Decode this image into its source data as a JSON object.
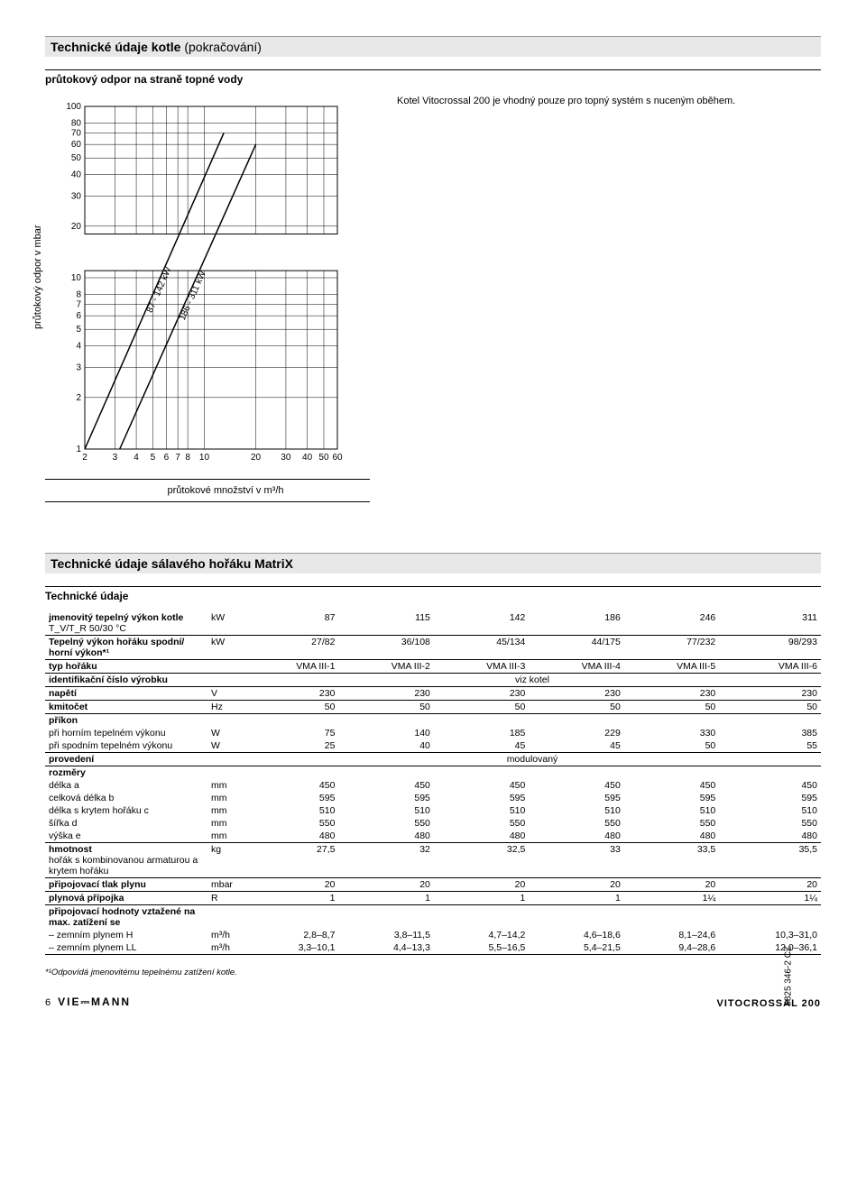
{
  "header1": {
    "bold": "Technické údaje kotle",
    "rest": " (pokračování)"
  },
  "subheading1": "průtokový odpor na straně topné vody",
  "note_text": "Kotel Vitocrossal 200 je vhodný pouze pro topný systém s nuceným oběhem.",
  "chart": {
    "type": "log-log-line",
    "y_label": "průtokový odpor v mbar",
    "x_label": "průtokové množství v m³/h",
    "x_ticks": [
      2,
      3,
      4,
      5,
      6,
      7,
      8,
      10,
      20,
      30,
      40,
      50,
      60
    ],
    "y_ticks": [
      1,
      2,
      3,
      4,
      5,
      6,
      7,
      8,
      10,
      20,
      30,
      40,
      50,
      60,
      70,
      80,
      100
    ],
    "background_color": "#ffffff",
    "grid_color": "#000000",
    "line_color": "#000000",
    "line_width": 1.5,
    "font_size": 10,
    "series": [
      {
        "label": "87 - 142 kW",
        "x": [
          2,
          13
        ],
        "y": [
          1,
          70
        ]
      },
      {
        "label": "186 - 311 kW",
        "x": [
          3.2,
          20
        ],
        "y": [
          1,
          60
        ]
      }
    ]
  },
  "header2": "Technické údaje sálavého hořáku MatriX",
  "subheading2": "Technické údaje",
  "table": {
    "columns_count": 8,
    "rows": [
      {
        "label": "jmenovitý tepelný výkon kotle",
        "sub": "T_V/T_R 50/30 °C",
        "unit": "kW",
        "vals": [
          "87",
          "115",
          "142",
          "186",
          "246",
          "311"
        ],
        "bold": true,
        "border": true
      },
      {
        "label": "Tepelný výkon hořáku spodní/ horní výkon*¹",
        "unit": "kW",
        "vals": [
          "27/82",
          "36/108",
          "45/134",
          "44/175",
          "77/232",
          "98/293"
        ],
        "bold": true,
        "border": true
      },
      {
        "label": "typ hořáku",
        "unit": "",
        "vals": [
          "VMA III-1",
          "VMA III-2",
          "VMA III-3",
          "VMA III-4",
          "VMA III-5",
          "VMA III-6"
        ],
        "bold": true,
        "border": true
      },
      {
        "label": "identifikační číslo výrobku",
        "unit": "",
        "span": "viz kotel",
        "bold": true,
        "border": true
      },
      {
        "label": "napětí",
        "unit": "V",
        "vals": [
          "230",
          "230",
          "230",
          "230",
          "230",
          "230"
        ],
        "bold": true,
        "border": true
      },
      {
        "label": "kmitočet",
        "unit": "Hz",
        "vals": [
          "50",
          "50",
          "50",
          "50",
          "50",
          "50"
        ],
        "bold": true,
        "border": true
      },
      {
        "label": "příkon",
        "unit": "",
        "vals": [
          "",
          "",
          "",
          "",
          "",
          ""
        ],
        "bold": true
      },
      {
        "label": "při horním tepelném výkonu",
        "unit": "W",
        "vals": [
          "75",
          "140",
          "185",
          "229",
          "330",
          "385"
        ]
      },
      {
        "label": "při spodním tepelném výkonu",
        "unit": "W",
        "vals": [
          "25",
          "40",
          "45",
          "45",
          "50",
          "55"
        ],
        "border": true
      },
      {
        "label": "provedení",
        "unit": "",
        "span": "modulovaný",
        "bold": true,
        "border": true
      },
      {
        "label": "rozměry",
        "unit": "",
        "vals": [
          "",
          "",
          "",
          "",
          "",
          ""
        ],
        "bold": true
      },
      {
        "label": "délka a",
        "unit": "mm",
        "vals": [
          "450",
          "450",
          "450",
          "450",
          "450",
          "450"
        ]
      },
      {
        "label": "celková délka b",
        "unit": "mm",
        "vals": [
          "595",
          "595",
          "595",
          "595",
          "595",
          "595"
        ]
      },
      {
        "label": "délka s krytem hořáku c",
        "unit": "mm",
        "vals": [
          "510",
          "510",
          "510",
          "510",
          "510",
          "510"
        ]
      },
      {
        "label": "šířka d",
        "unit": "mm",
        "vals": [
          "550",
          "550",
          "550",
          "550",
          "550",
          "550"
        ]
      },
      {
        "label": "výška e",
        "unit": "mm",
        "vals": [
          "480",
          "480",
          "480",
          "480",
          "480",
          "480"
        ],
        "border": true
      },
      {
        "label": "hmotnost",
        "sub": "hořák s kombinovanou armaturou a krytem hořáku",
        "unit": "kg",
        "vals": [
          "27,5",
          "32",
          "32,5",
          "33",
          "33,5",
          "35,5"
        ],
        "bold": true,
        "border": true
      },
      {
        "label": "připojovací tlak plynu",
        "unit": "mbar",
        "vals": [
          "20",
          "20",
          "20",
          "20",
          "20",
          "20"
        ],
        "bold": true,
        "border": true
      },
      {
        "label": "plynová přípojka",
        "unit": "R",
        "vals": [
          "1",
          "1",
          "1",
          "1",
          "1¼",
          "1¼"
        ],
        "bold": true,
        "border": true
      },
      {
        "label": "připojovací hodnoty vztažené na max. zatížení se",
        "unit": "",
        "vals": [
          "",
          "",
          "",
          "",
          "",
          ""
        ],
        "bold": true
      },
      {
        "label": "– zemním plynem H",
        "unit": "m³/h",
        "vals": [
          "2,8–8,7",
          "3,8–11,5",
          "4,7–14,2",
          "4,6–18,6",
          "8,1–24,6",
          "10,3–31,0"
        ]
      },
      {
        "label": "– zemním plynem LL",
        "unit": "m³/h",
        "vals": [
          "3,3–10,1",
          "4,4–13,3",
          "5,5–16,5",
          "5,4–21,5",
          "9,4–28,6",
          "12,0–36,1"
        ],
        "border": true
      }
    ]
  },
  "footnote": "*¹Odpovídá jmenovitému tepelnému zatížení kotle.",
  "footer": {
    "page": "6",
    "brand": "VIE⎓MANN",
    "product": "VITOCROSSAL 200"
  },
  "side_code": "5825 346-2 CZ"
}
